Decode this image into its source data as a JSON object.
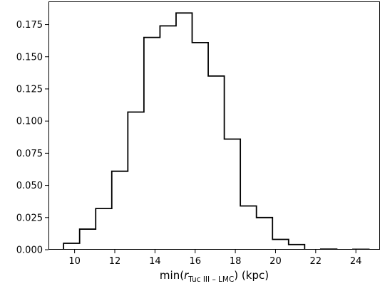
{
  "chart_data": {
    "type": "histogram",
    "title": "",
    "xlabel": {
      "prefix": "min(",
      "symbol": "r",
      "subscript": "Tuc III – LMC",
      "suffix": ") (kpc)"
    },
    "ylabel": "",
    "xlim": [
      8.7,
      25.2
    ],
    "ylim": [
      0,
      0.193
    ],
    "xticks": [
      10,
      12,
      14,
      16,
      18,
      20,
      22,
      24
    ],
    "yticks": [
      0.0,
      0.025,
      0.05,
      0.075,
      0.1,
      0.125,
      0.15,
      0.175
    ],
    "xtick_labels": [
      "10",
      "12",
      "14",
      "16",
      "18",
      "20",
      "22",
      "24"
    ],
    "ytick_labels": [
      "0.000",
      "0.025",
      "0.050",
      "0.075",
      "0.100",
      "0.125",
      "0.150",
      "0.175"
    ],
    "grid": false,
    "legend": "none",
    "line_color": "#000000",
    "bin_edges": [
      8.65,
      9.45,
      10.25,
      11.05,
      11.85,
      12.65,
      13.45,
      14.25,
      15.05,
      15.85,
      16.65,
      17.45,
      18.25,
      19.05,
      19.85,
      20.65,
      21.45,
      22.25,
      23.05,
      23.85,
      24.65,
      25.45
    ],
    "values": [
      0.0,
      0.005,
      0.016,
      0.032,
      0.061,
      0.107,
      0.165,
      0.174,
      0.184,
      0.161,
      0.135,
      0.086,
      0.034,
      0.025,
      0.008,
      0.004,
      0.0,
      0.0005,
      0.0,
      0.0003,
      0.0
    ]
  }
}
